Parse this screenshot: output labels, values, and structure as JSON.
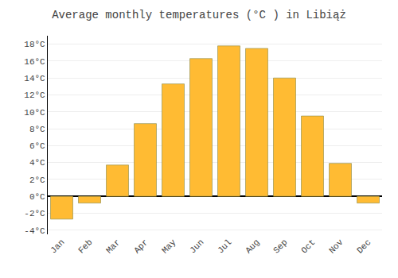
{
  "chart_data": {
    "type": "bar",
    "title": "Average monthly temperatures (°C ) in Libiąż",
    "categories": [
      "Jan",
      "Feb",
      "Mar",
      "Apr",
      "May",
      "Jun",
      "Jul",
      "Aug",
      "Sep",
      "Oct",
      "Nov",
      "Dec"
    ],
    "values": [
      -2.7,
      -0.8,
      3.7,
      8.6,
      13.3,
      16.3,
      17.8,
      17.5,
      14.0,
      9.5,
      3.9,
      -0.8
    ],
    "color": "#FFBB33",
    "ylim": [
      -4.5,
      19
    ],
    "yticks": [
      {
        "value": -4,
        "label": "-4°C"
      },
      {
        "value": -2,
        "label": "-2°C"
      },
      {
        "value": 0,
        "label": "0°C"
      },
      {
        "value": 2,
        "label": "2°C"
      },
      {
        "value": 4,
        "label": "4°C"
      },
      {
        "value": 6,
        "label": "6°C"
      },
      {
        "value": 8,
        "label": "8°C"
      },
      {
        "value": 10,
        "label": "10°C"
      },
      {
        "value": 12,
        "label": "12°C"
      },
      {
        "value": 14,
        "label": "14°C"
      },
      {
        "value": 16,
        "label": "16°C"
      },
      {
        "value": 18,
        "label": "18°C"
      }
    ],
    "grid": true
  }
}
